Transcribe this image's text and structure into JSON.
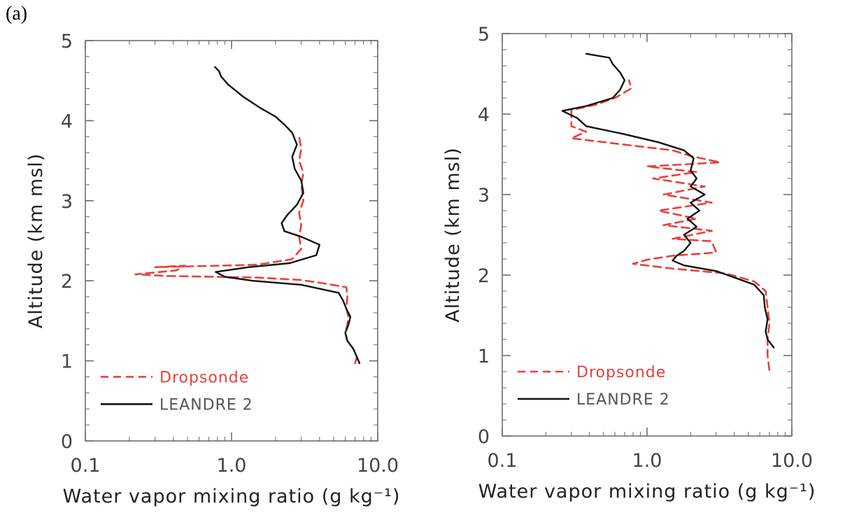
{
  "figure": {
    "label": "(a)"
  },
  "chart_data": [
    {
      "type": "line",
      "xscale": "log",
      "xlim": [
        0.1,
        10.0
      ],
      "ylim": [
        0,
        5
      ],
      "xticks": [
        0.1,
        1.0,
        10.0
      ],
      "xtick_labels": [
        "0.1",
        "1.0",
        "10.0"
      ],
      "yticks": [
        0,
        1,
        2,
        3,
        4,
        5
      ],
      "ytick_labels": [
        "0",
        "1",
        "2",
        "3",
        "4",
        "5"
      ],
      "xlabel": "Water vapor mixing ratio (g kg⁻¹)",
      "ylabel": "Altitude (km msl)",
      "grid": false,
      "legend": "bottom-left",
      "series": [
        {
          "name": "Dropsonde",
          "color": "#e8403c",
          "style": "dashed",
          "points": [
            [
              7.0,
              0.97
            ],
            [
              7.2,
              1.05
            ],
            [
              6.8,
              1.15
            ],
            [
              6.2,
              1.25
            ],
            [
              6.0,
              1.35
            ],
            [
              6.2,
              1.45
            ],
            [
              6.3,
              1.55
            ],
            [
              6.1,
              1.65
            ],
            [
              6.2,
              1.8
            ],
            [
              6.1,
              1.92
            ],
            [
              4.2,
              1.97
            ],
            [
              3.0,
              2.01
            ],
            [
              1.5,
              2.04
            ],
            [
              0.36,
              2.06
            ],
            [
              0.22,
              2.08
            ],
            [
              0.42,
              2.13
            ],
            [
              0.48,
              2.19
            ],
            [
              0.3,
              2.17
            ],
            [
              1.5,
              2.2
            ],
            [
              2.6,
              2.27
            ],
            [
              3.0,
              2.4
            ],
            [
              2.9,
              2.55
            ],
            [
              3.0,
              2.7
            ],
            [
              2.9,
              2.85
            ],
            [
              3.1,
              3.0
            ],
            [
              3.0,
              3.2
            ],
            [
              3.1,
              3.35
            ],
            [
              2.9,
              3.5
            ],
            [
              3.0,
              3.65
            ],
            [
              2.9,
              3.8
            ]
          ]
        },
        {
          "name": "LEANDRE 2",
          "color": "#111111",
          "style": "solid",
          "points": [
            [
              7.5,
              0.97
            ],
            [
              7.2,
              1.05
            ],
            [
              6.8,
              1.15
            ],
            [
              6.2,
              1.25
            ],
            [
              6.0,
              1.35
            ],
            [
              6.3,
              1.45
            ],
            [
              6.5,
              1.55
            ],
            [
              6.1,
              1.65
            ],
            [
              5.8,
              1.75
            ],
            [
              5.4,
              1.85
            ],
            [
              3.0,
              1.95
            ],
            [
              1.4,
              2.0
            ],
            [
              0.9,
              2.05
            ],
            [
              0.78,
              2.11
            ],
            [
              1.3,
              2.17
            ],
            [
              2.5,
              2.22
            ],
            [
              3.8,
              2.32
            ],
            [
              4.0,
              2.45
            ],
            [
              3.0,
              2.55
            ],
            [
              2.3,
              2.62
            ],
            [
              2.2,
              2.72
            ],
            [
              2.4,
              2.82
            ],
            [
              2.8,
              2.95
            ],
            [
              3.1,
              3.1
            ],
            [
              3.0,
              3.25
            ],
            [
              2.7,
              3.4
            ],
            [
              2.6,
              3.55
            ],
            [
              2.8,
              3.7
            ],
            [
              2.6,
              3.85
            ],
            [
              2.3,
              3.95
            ],
            [
              2.0,
              4.05
            ],
            [
              1.6,
              4.15
            ],
            [
              1.2,
              4.3
            ],
            [
              0.95,
              4.45
            ],
            [
              0.85,
              4.55
            ],
            [
              0.82,
              4.62
            ],
            [
              0.77,
              4.67
            ]
          ]
        }
      ]
    },
    {
      "type": "line",
      "xscale": "log",
      "xlim": [
        0.1,
        10.0
      ],
      "ylim": [
        0,
        5
      ],
      "xticks": [
        0.1,
        1.0,
        10.0
      ],
      "xtick_labels": [
        "0.1",
        "1.0",
        "10.0"
      ],
      "yticks": [
        0,
        1,
        2,
        3,
        4,
        5
      ],
      "ytick_labels": [
        "0",
        "1",
        "2",
        "3",
        "4",
        "5"
      ],
      "xlabel": "Water vapor mixing ratio (g kg⁻¹)",
      "ylabel": "Altitude (km msl)",
      "grid": false,
      "legend": "bottom-left",
      "series": [
        {
          "name": "Dropsonde",
          "color": "#e8403c",
          "style": "dashed",
          "points": [
            [
              7.0,
              0.82
            ],
            [
              6.8,
              1.0
            ],
            [
              6.8,
              1.2
            ],
            [
              7.0,
              1.4
            ],
            [
              6.8,
              1.6
            ],
            [
              6.6,
              1.8
            ],
            [
              5.5,
              1.92
            ],
            [
              3.5,
              2.02
            ],
            [
              1.5,
              2.08
            ],
            [
              0.8,
              2.14
            ],
            [
              1.0,
              2.19
            ],
            [
              1.5,
              2.24
            ],
            [
              3.0,
              2.28
            ],
            [
              2.8,
              2.42
            ],
            [
              1.5,
              2.45
            ],
            [
              2.8,
              2.55
            ],
            [
              1.3,
              2.62
            ],
            [
              2.2,
              2.7
            ],
            [
              1.2,
              2.8
            ],
            [
              2.8,
              2.9
            ],
            [
              1.3,
              3.0
            ],
            [
              2.5,
              3.1
            ],
            [
              1.1,
              3.2
            ],
            [
              2.2,
              3.28
            ],
            [
              1.0,
              3.35
            ],
            [
              3.2,
              3.4
            ],
            [
              2.0,
              3.48
            ],
            [
              1.5,
              3.55
            ],
            [
              0.7,
              3.62
            ],
            [
              0.3,
              3.7
            ],
            [
              0.38,
              3.78
            ],
            [
              0.3,
              3.85
            ],
            [
              0.3,
              3.95
            ],
            [
              0.3,
              4.05
            ],
            [
              0.45,
              4.12
            ],
            [
              0.6,
              4.2
            ],
            [
              0.78,
              4.32
            ],
            [
              0.75,
              4.42
            ]
          ]
        },
        {
          "name": "LEANDRE 2",
          "color": "#111111",
          "style": "solid",
          "points": [
            [
              7.5,
              1.1
            ],
            [
              6.8,
              1.2
            ],
            [
              6.6,
              1.3
            ],
            [
              6.8,
              1.45
            ],
            [
              6.5,
              1.6
            ],
            [
              6.4,
              1.75
            ],
            [
              5.5,
              1.88
            ],
            [
              3.0,
              2.05
            ],
            [
              1.8,
              2.12
            ],
            [
              1.5,
              2.18
            ],
            [
              1.6,
              2.24
            ],
            [
              1.8,
              2.3
            ],
            [
              2.0,
              2.4
            ],
            [
              1.8,
              2.5
            ],
            [
              2.2,
              2.6
            ],
            [
              1.9,
              2.7
            ],
            [
              2.3,
              2.8
            ],
            [
              2.0,
              2.9
            ],
            [
              2.5,
              3.0
            ],
            [
              2.0,
              3.1
            ],
            [
              2.2,
              3.2
            ],
            [
              2.0,
              3.3
            ],
            [
              2.1,
              3.45
            ],
            [
              1.8,
              3.55
            ],
            [
              1.2,
              3.65
            ],
            [
              0.7,
              3.75
            ],
            [
              0.38,
              3.85
            ],
            [
              0.33,
              3.95
            ],
            [
              0.26,
              4.04
            ],
            [
              0.38,
              4.1
            ],
            [
              0.58,
              4.2
            ],
            [
              0.65,
              4.3
            ],
            [
              0.7,
              4.42
            ],
            [
              0.65,
              4.52
            ],
            [
              0.58,
              4.62
            ],
            [
              0.55,
              4.7
            ],
            [
              0.38,
              4.75
            ]
          ]
        }
      ]
    }
  ]
}
